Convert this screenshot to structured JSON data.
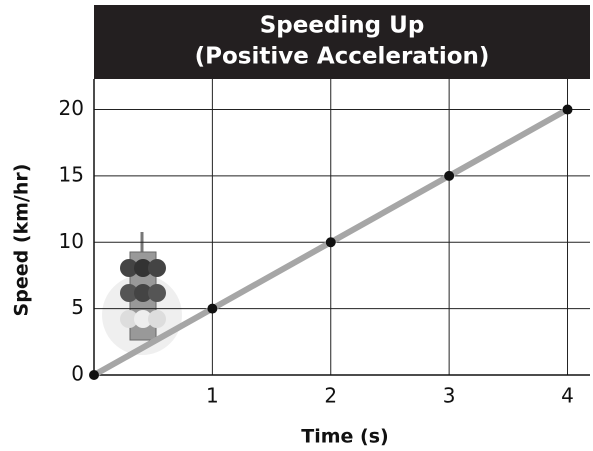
{
  "chart_data": {
    "type": "line",
    "title": [
      "Speeding Up",
      "(Positive Acceleration)"
    ],
    "x_label": "Time (s)",
    "y_label": "Speed (km/hr)",
    "x": [
      0,
      1,
      2,
      3,
      4
    ],
    "series": [
      {
        "color": "#a6a6a6",
        "values": [
          0,
          5,
          10,
          15,
          20
        ]
      }
    ],
    "xlim": [
      0,
      4.19
    ],
    "ylim": [
      0,
      22.3
    ],
    "xticks": [
      1,
      2,
      3,
      4
    ],
    "yticks": [
      0,
      5,
      10,
      15,
      20
    ],
    "grid": true
  }
}
